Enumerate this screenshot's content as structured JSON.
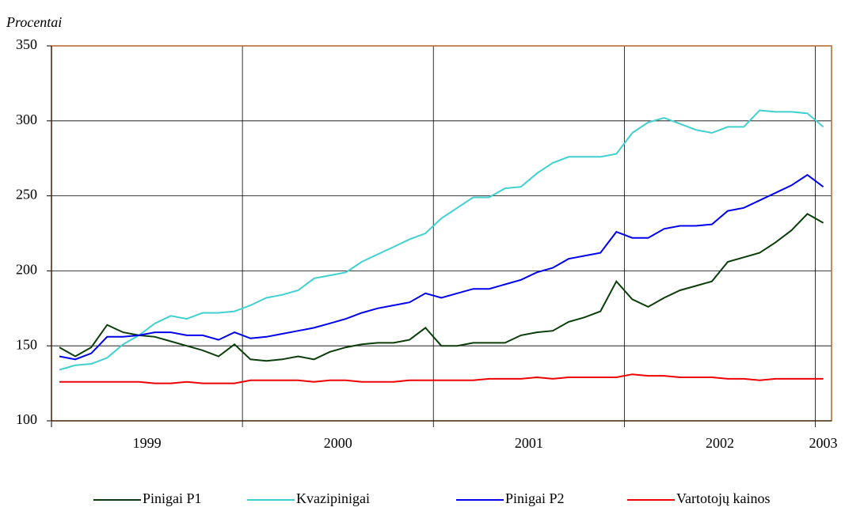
{
  "chart_data": {
    "type": "line",
    "y_label": "Procentai",
    "categories": [
      null,
      null,
      null,
      null,
      null,
      null,
      "1999",
      null,
      null,
      null,
      null,
      null,
      null,
      null,
      null,
      null,
      null,
      null,
      "2000",
      null,
      null,
      null,
      null,
      null,
      null,
      null,
      null,
      null,
      null,
      null,
      "2001",
      null,
      null,
      null,
      null,
      null,
      null,
      null,
      null,
      null,
      null,
      null,
      "2002",
      null,
      null,
      null,
      null,
      null,
      "2003"
    ],
    "ylim": [
      100,
      350
    ],
    "yticks": [
      100,
      150,
      200,
      250,
      300,
      350
    ],
    "grid": true,
    "series": [
      {
        "name": "Pinigai P1",
        "color": "#0b3d0b",
        "values": [
          149,
          143,
          149,
          164,
          159,
          157,
          156,
          153,
          150,
          147,
          143,
          151,
          141,
          140,
          141,
          143,
          141,
          146,
          149,
          151,
          152,
          152,
          154,
          162,
          150,
          150,
          152,
          152,
          152,
          157,
          159,
          160,
          166,
          169,
          173,
          193,
          181,
          176,
          182,
          187,
          190,
          193,
          206,
          209,
          212,
          219,
          227,
          238,
          232
        ]
      },
      {
        "name": "Kvazipinigai",
        "color": "#40d0d0",
        "values": [
          134,
          137,
          138,
          142,
          151,
          157,
          165,
          170,
          168,
          172,
          172,
          173,
          177,
          182,
          184,
          187,
          195,
          197,
          199,
          206,
          211,
          216,
          221,
          225,
          235,
          242,
          249,
          249,
          255,
          256,
          265,
          272,
          276,
          276,
          276,
          278,
          292,
          299,
          302,
          298,
          294,
          292,
          296,
          296,
          307,
          306,
          306,
          305,
          296
        ]
      },
      {
        "name": "Pinigai P2",
        "color": "#0000ee",
        "values": [
          143,
          141,
          145,
          156,
          156,
          157,
          159,
          159,
          157,
          157,
          154,
          159,
          155,
          156,
          158,
          160,
          162,
          165,
          168,
          172,
          175,
          177,
          179,
          185,
          182,
          185,
          188,
          188,
          191,
          194,
          199,
          202,
          208,
          210,
          212,
          226,
          222,
          222,
          228,
          230,
          230,
          231,
          240,
          242,
          247,
          252,
          257,
          264,
          256
        ]
      },
      {
        "name": "Vartotojų kainos",
        "color": "#ee0000",
        "values": [
          126,
          126,
          126,
          126,
          126,
          126,
          125,
          125,
          126,
          125,
          125,
          125,
          127,
          127,
          127,
          127,
          126,
          127,
          127,
          126,
          126,
          126,
          127,
          127,
          127,
          127,
          127,
          128,
          128,
          128,
          129,
          128,
          129,
          129,
          129,
          129,
          131,
          130,
          130,
          129,
          129,
          129,
          128,
          128,
          127,
          128,
          128,
          128,
          128
        ]
      }
    ]
  }
}
